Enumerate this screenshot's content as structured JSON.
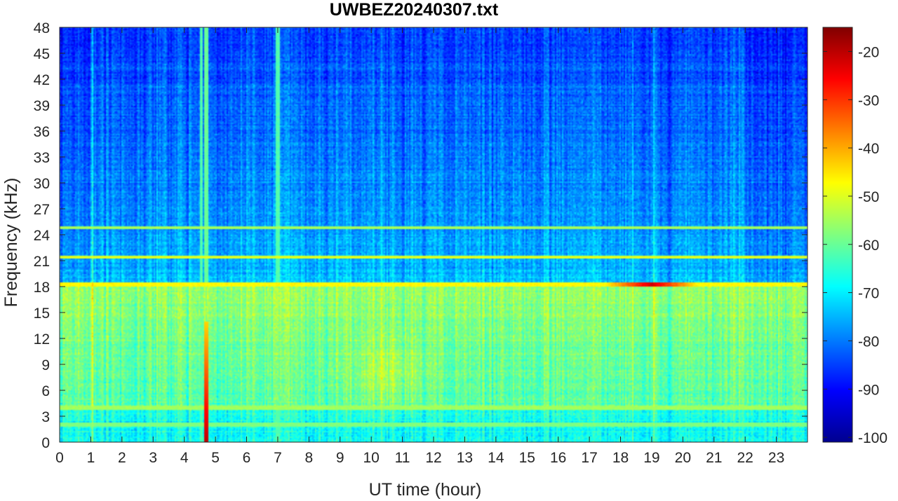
{
  "chart_data": {
    "type": "heatmap",
    "title": "UWBEZ20240307.txt",
    "xlabel": "UT time (hour)",
    "ylabel": "Frequency (kHz)",
    "xlim": [
      0,
      24
    ],
    "ylim": [
      0,
      48
    ],
    "x_ticks": [
      "0",
      "1",
      "2",
      "3",
      "4",
      "5",
      "6",
      "7",
      "8",
      "9",
      "10",
      "11",
      "12",
      "13",
      "14",
      "15",
      "16",
      "17",
      "18",
      "19",
      "20",
      "21",
      "22",
      "23"
    ],
    "y_ticks": [
      "0",
      "3",
      "6",
      "9",
      "12",
      "15",
      "18",
      "21",
      "24",
      "27",
      "30",
      "33",
      "36",
      "39",
      "42",
      "45",
      "48"
    ],
    "colorbar": {
      "colormap": "jet",
      "clim": [
        -101,
        -15
      ],
      "ticks": [
        "-100",
        "-90",
        "-80",
        "-70",
        "-60",
        "-50",
        "-40",
        "-30",
        "-20"
      ]
    },
    "features": {
      "background_low_band_db": -58,
      "background_high_band_db": -85,
      "transition_frequency_khz": 18.5,
      "enhanced_region": {
        "hours": [
          9.5,
          11.5
        ],
        "freq_khz": [
          5,
          11
        ],
        "db": -53
      },
      "constant_tones": [
        {
          "freq_khz": 18.2,
          "db": -47,
          "peak_hours": [
            17.5,
            20.5
          ],
          "peak_db": -22
        },
        {
          "freq_khz": 21.4,
          "db": -50
        },
        {
          "freq_khz": 24.8,
          "db": -55
        },
        {
          "freq_khz": 4.0,
          "db": -55
        },
        {
          "freq_khz": 2.0,
          "db": -58
        }
      ],
      "broadband_burst": {
        "hour": 4.7,
        "db": -60,
        "low_freq_peak_db": -20,
        "low_freq_peak_range_khz": [
          0,
          14
        ]
      },
      "vertical_lines": [
        {
          "hour": 4.55,
          "db": -62
        },
        {
          "hour": 7.0,
          "db": -62
        }
      ]
    }
  }
}
